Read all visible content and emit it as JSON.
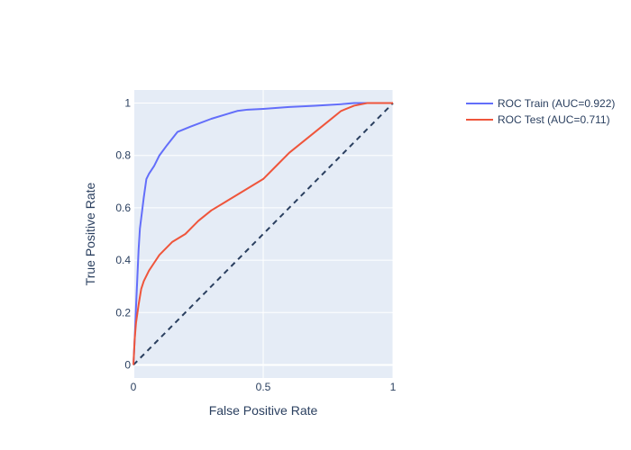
{
  "chart_data": {
    "type": "line",
    "title": "",
    "xlabel": "False Positive Rate",
    "ylabel": "True Positive Rate",
    "xlim": [
      0,
      1
    ],
    "ylim": [
      -0.05,
      1.05
    ],
    "x_ticks": [
      0,
      0.5,
      1
    ],
    "x_tick_labels": [
      "0",
      "0.5",
      "1"
    ],
    "y_ticks": [
      0,
      0.2,
      0.4,
      0.6,
      0.8,
      1
    ],
    "y_tick_labels": [
      "0",
      "0.2",
      "0.4",
      "0.6",
      "0.8",
      "1"
    ],
    "grid": true,
    "legend_position": "top-right",
    "colors": {
      "plot_bg": "#E5ECF6",
      "grid": "#FFFFFF",
      "text": "#2a3f5f",
      "diagonal": "#2a3f5f"
    },
    "series": [
      {
        "name": "ROC Train (AUC=0.922)",
        "color": "#636EFA",
        "x": [
          0,
          0.005,
          0.01,
          0.015,
          0.02,
          0.025,
          0.03,
          0.04,
          0.05,
          0.06,
          0.08,
          0.1,
          0.13,
          0.17,
          0.22,
          0.3,
          0.4,
          0.44,
          0.5,
          0.6,
          0.7,
          0.8,
          0.85,
          0.9,
          1.0
        ],
        "y": [
          0,
          0.1,
          0.22,
          0.33,
          0.44,
          0.52,
          0.56,
          0.64,
          0.71,
          0.73,
          0.76,
          0.8,
          0.84,
          0.89,
          0.91,
          0.94,
          0.97,
          0.975,
          0.978,
          0.985,
          0.99,
          0.996,
          1.0,
          1.0,
          1.0
        ]
      },
      {
        "name": "ROC Test (AUC=0.711)",
        "color": "#EF553B",
        "x": [
          0,
          0.005,
          0.01,
          0.02,
          0.03,
          0.04,
          0.06,
          0.08,
          0.1,
          0.12,
          0.15,
          0.2,
          0.25,
          0.3,
          0.35,
          0.4,
          0.45,
          0.5,
          0.55,
          0.6,
          0.65,
          0.7,
          0.75,
          0.8,
          0.85,
          0.9,
          0.95,
          1.0
        ],
        "y": [
          0,
          0.1,
          0.16,
          0.23,
          0.29,
          0.32,
          0.36,
          0.39,
          0.42,
          0.44,
          0.47,
          0.5,
          0.55,
          0.59,
          0.62,
          0.65,
          0.68,
          0.71,
          0.76,
          0.81,
          0.85,
          0.89,
          0.93,
          0.97,
          0.99,
          1.0,
          1.0,
          1.0
        ]
      }
    ],
    "reference_line": {
      "x": [
        0,
        1
      ],
      "y": [
        0,
        1
      ],
      "style": "dashed"
    }
  }
}
